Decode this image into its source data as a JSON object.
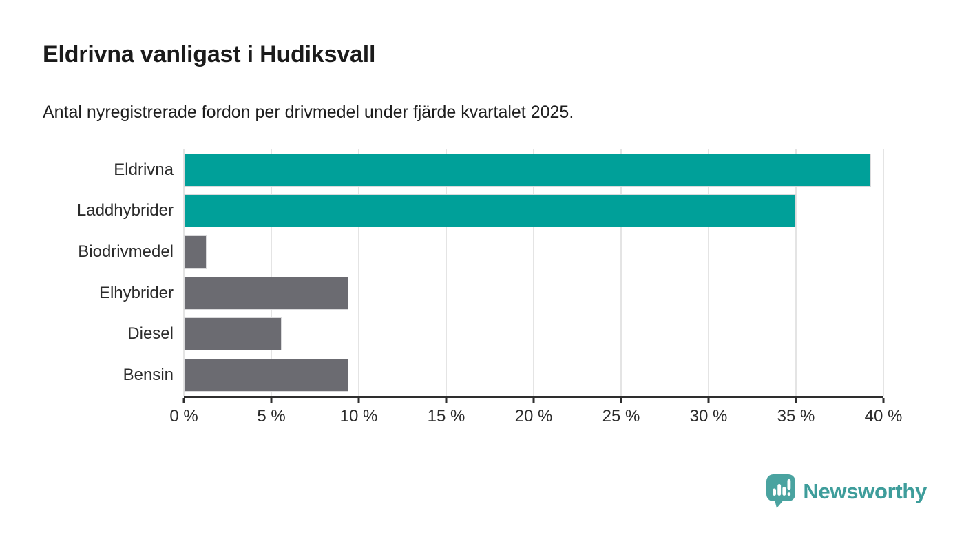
{
  "header": {
    "title": "Eldrivna vanligast i Hudiksvall",
    "subtitle": "Antal nyregistrerade fordon per drivmedel under fjärde kvartalet 2025."
  },
  "chart_data": {
    "type": "bar",
    "orientation": "horizontal",
    "title": "Eldrivna vanligast i Hudiksvall",
    "subtitle": "Antal nyregistrerade fordon per drivmedel under fjärde kvartalet 2025.",
    "categories": [
      "Eldrivna",
      "Laddhybrider",
      "Biodrivmedel",
      "Elhybrider",
      "Diesel",
      "Bensin"
    ],
    "values": [
      39.3,
      35.0,
      1.3,
      9.4,
      5.6,
      9.4
    ],
    "unit": "%",
    "xlim": [
      0,
      40
    ],
    "x_ticks": [
      0,
      5,
      10,
      15,
      20,
      25,
      30,
      35,
      40
    ],
    "x_tick_labels": [
      "0 %",
      "5 %",
      "10 %",
      "15 %",
      "20 %",
      "25 %",
      "30 %",
      "35 %",
      "40 %"
    ],
    "grid": true,
    "legend": false,
    "bar_colors": [
      "#00a099",
      "#00a099",
      "#6b6b71",
      "#6b6b71",
      "#6b6b71",
      "#6b6b71"
    ],
    "highlight_color": "#00a099",
    "default_color": "#6b6b71"
  },
  "footer": {
    "brand": "Newsworthy",
    "brand_color": "#3e9d9b",
    "logo_icon": "bar-chart-speech-bubble",
    "logo_color": "#4aa3a0"
  }
}
